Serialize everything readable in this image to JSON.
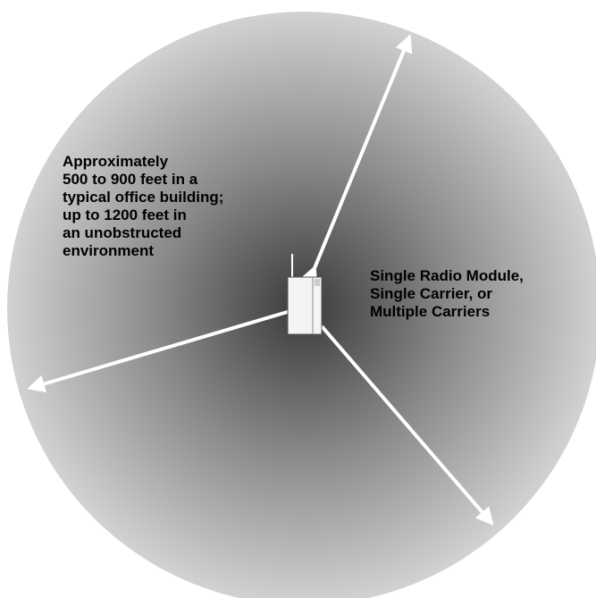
{
  "range_label": {
    "lines": [
      "Approximately",
      "500 to 900 feet in a",
      "typical office building;",
      "up to 1200 feet in",
      "an unobstructed",
      "environment"
    ]
  },
  "module_label": {
    "lines": [
      "Single Radio Module,",
      "Single Carrier, or",
      "Multiple Carriers"
    ]
  }
}
